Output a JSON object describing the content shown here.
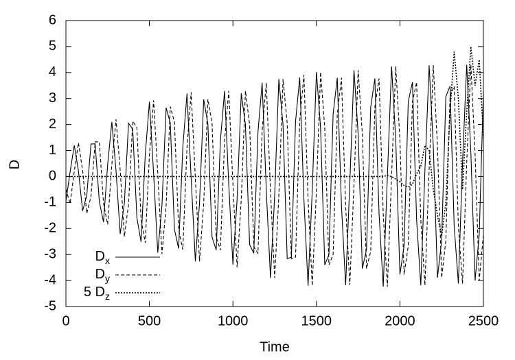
{
  "chart_data": {
    "type": "line",
    "x_label": "Time",
    "y_label": "D",
    "xlim": [
      0,
      2500
    ],
    "xticks": [
      0,
      500,
      1000,
      1500,
      2000,
      2500
    ],
    "ylim": [
      -5,
      6
    ],
    "yticks": [
      -5,
      -4,
      -3,
      -2,
      -1,
      0,
      1,
      2,
      3,
      4,
      5,
      6
    ],
    "legend": "bottom-left",
    "x": [
      0,
      25,
      50,
      75,
      100,
      125,
      150,
      175,
      200,
      225,
      250,
      275,
      300,
      325,
      350,
      375,
      400,
      425,
      450,
      475,
      500,
      525,
      550,
      575,
      600,
      625,
      650,
      675,
      700,
      725,
      750,
      775,
      800,
      825,
      850,
      875,
      900,
      925,
      950,
      975,
      1000,
      1025,
      1050,
      1075,
      1100,
      1125,
      1150,
      1175,
      1200,
      1225,
      1250,
      1275,
      1300,
      1325,
      1350,
      1375,
      1400,
      1425,
      1450,
      1475,
      1500,
      1525,
      1550,
      1575,
      1600,
      1625,
      1650,
      1675,
      1700,
      1725,
      1750,
      1775,
      1800,
      1825,
      1850,
      1875,
      1900,
      1925,
      1950,
      1975,
      2000,
      2025,
      2050,
      2075,
      2100,
      2125,
      2150,
      2175,
      2200,
      2225,
      2250,
      2275,
      2300,
      2325,
      2350,
      2375,
      2400,
      2425,
      2450,
      2475,
      2500
    ],
    "series": [
      {
        "name": "Dx",
        "color": "#000000",
        "dash": "solid",
        "values": [
          -0.95,
          0.18,
          1.2,
          0.22,
          -1.32,
          -0.72,
          1.25,
          1.26,
          -0.96,
          -1.75,
          0.46,
          2.1,
          0.23,
          -2.21,
          -1.02,
          2.05,
          1.82,
          -1.59,
          -2.51,
          0.82,
          2.88,
          0.12,
          -2.93,
          -1.12,
          2.65,
          2.06,
          -2.04,
          -2.77,
          1.13,
          3.19,
          -0.07,
          -3.26,
          -1.02,
          2.97,
          2.03,
          -2.33,
          -2.83,
          1.38,
          3.29,
          -0.29,
          -3.39,
          -0.87,
          3.2,
          1.99,
          -2.62,
          -2.95,
          1.71,
          3.61,
          -0.55,
          -3.9,
          -0.73,
          3.75,
          2.0,
          -3.16,
          -3.1,
          2.12,
          3.81,
          -0.87,
          -4.2,
          -0.53,
          4.02,
          1.87,
          -3.4,
          -3.0,
          2.4,
          3.8,
          -1.13,
          -4.18,
          -0.26,
          4.09,
          1.63,
          -3.54,
          -2.81,
          2.67,
          3.77,
          -1.41,
          -4.24,
          0,
          4.24,
          1.41,
          -3.77,
          -2.67,
          2.88,
          3.63,
          -1.67,
          -4.19,
          0.27,
          4.28,
          1.16,
          -3.89,
          -2.46,
          3.07,
          3.48,
          -1.91,
          -4.12,
          0.54,
          4.3,
          0.89,
          -4.0,
          -2.23,
          3.26
        ]
      },
      {
        "name": "Dy",
        "color": "#000000",
        "dash": "dashed",
        "values": [
          -0.48,
          -1.04,
          0.2,
          1.3,
          0.23,
          -1.42,
          -0.77,
          1.33,
          1.34,
          -1.02,
          -1.84,
          0.48,
          2.2,
          0.24,
          -2.31,
          -1.07,
          2.13,
          1.89,
          -1.65,
          -2.55,
          0.84,
          2.93,
          0.13,
          -2.98,
          -1.14,
          2.69,
          2.09,
          -2.04,
          -2.81,
          1.13,
          3.24,
          -0.07,
          -3.26,
          -1.04,
          2.97,
          2.06,
          -2.33,
          -2.83,
          1.38,
          3.29,
          -0.29,
          -3.49,
          -0.87,
          3.29,
          1.99,
          -2.7,
          -2.95,
          1.76,
          3.61,
          -0.57,
          -3.9,
          -0.75,
          3.75,
          2.05,
          -3.16,
          -3.1,
          2.12,
          3.91,
          -0.87,
          -4.2,
          -0.53,
          4.02,
          1.87,
          -3.4,
          -3.0,
          2.4,
          3.8,
          -1.13,
          -4.18,
          -0.26,
          4.09,
          1.63,
          -3.54,
          -2.88,
          2.67,
          3.77,
          -1.41,
          -4.24,
          0,
          4.24,
          1.41,
          -3.77,
          -2.67,
          2.88,
          3.63,
          -1.67,
          -4.19,
          0.27,
          4.28,
          1.16,
          -3.89,
          -2.46,
          3.07,
          3.48,
          -1.91,
          -4.12,
          0.54,
          4.3,
          0.89,
          -4.0,
          -2.23
        ]
      },
      {
        "name": "5 Dz",
        "color": "#000000",
        "dash": "dotted",
        "values": [
          0,
          0,
          0,
          0,
          0,
          0,
          0,
          0,
          0,
          0,
          0,
          0,
          0,
          0,
          0,
          0,
          0,
          0,
          0,
          0,
          0,
          0,
          0,
          0,
          0,
          0,
          0,
          0,
          0,
          0,
          0,
          0,
          0,
          0,
          0,
          0,
          0,
          0,
          0,
          0,
          0,
          0,
          0,
          0,
          0,
          0,
          0,
          0,
          0,
          0,
          0,
          0,
          0,
          0,
          0,
          0,
          0,
          0,
          0,
          0,
          0,
          0,
          0,
          0,
          0,
          0,
          0,
          0,
          0,
          0,
          0,
          0,
          0,
          0,
          0,
          0,
          0,
          0.05,
          0,
          -0.1,
          -0.2,
          -0.35,
          -0.4,
          -0.3,
          0.1,
          0.4,
          1.2,
          1.0,
          -0.5,
          -1.5,
          -2.3,
          -1.0,
          2.5,
          4.8,
          3.0,
          -0.5,
          2.5,
          5.0,
          3.5,
          4.5,
          1.5
        ]
      }
    ]
  }
}
